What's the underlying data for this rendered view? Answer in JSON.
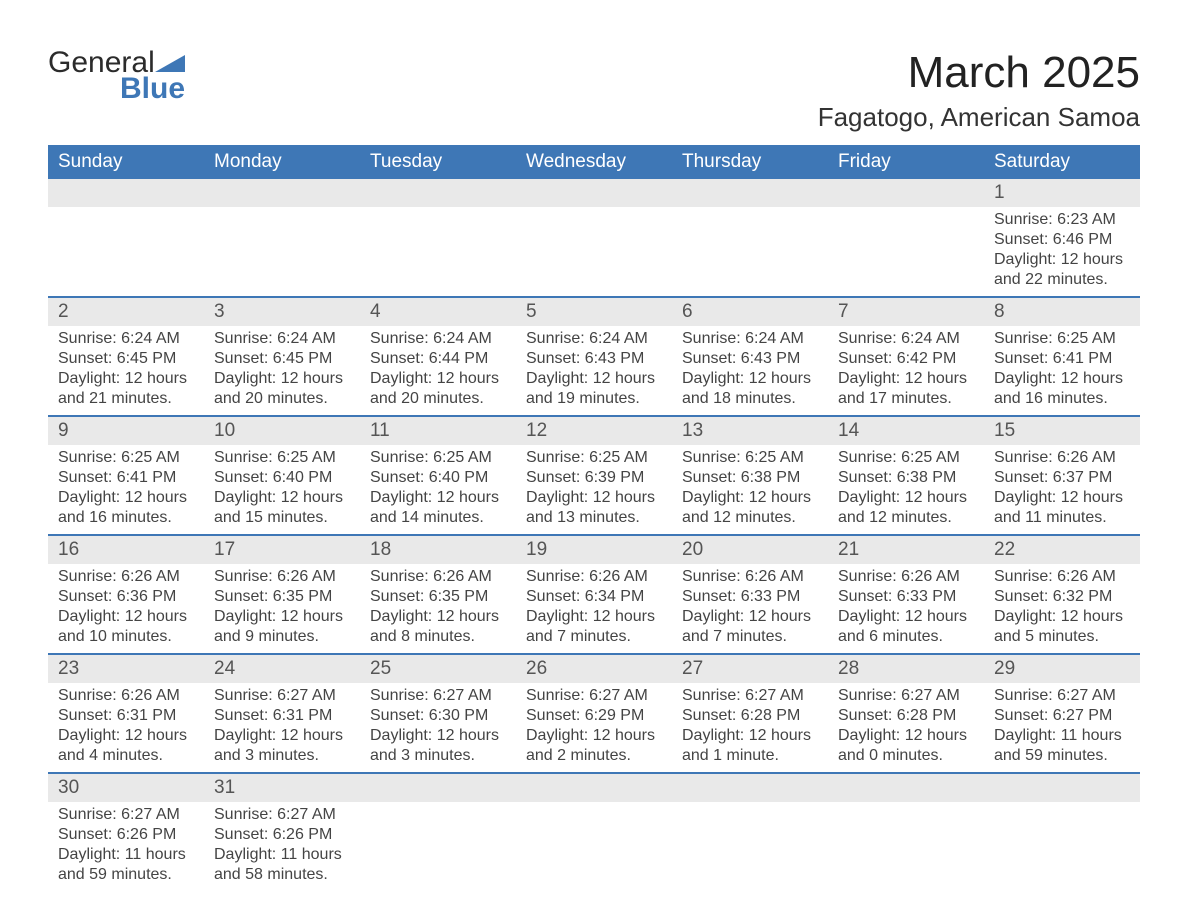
{
  "logo": {
    "general": "General",
    "blue": "Blue"
  },
  "header": {
    "title": "March 2025",
    "location": "Fagatogo, American Samoa"
  },
  "colors": {
    "header_bg": "#3e77b6",
    "header_text": "#ffffff",
    "daynum_bg": "#e9e9e9",
    "row_border": "#3e77b6",
    "body_text": "#444444"
  },
  "weekdays": [
    "Sunday",
    "Monday",
    "Tuesday",
    "Wednesday",
    "Thursday",
    "Friday",
    "Saturday"
  ],
  "labels": {
    "sunrise": "Sunrise:",
    "sunset": "Sunset:",
    "daylight": "Daylight:"
  },
  "weeks": [
    [
      null,
      null,
      null,
      null,
      null,
      null,
      {
        "n": 1,
        "sr": "6:23 AM",
        "ss": "6:46 PM",
        "dl": "12 hours and 22 minutes."
      }
    ],
    [
      {
        "n": 2,
        "sr": "6:24 AM",
        "ss": "6:45 PM",
        "dl": "12 hours and 21 minutes."
      },
      {
        "n": 3,
        "sr": "6:24 AM",
        "ss": "6:45 PM",
        "dl": "12 hours and 20 minutes."
      },
      {
        "n": 4,
        "sr": "6:24 AM",
        "ss": "6:44 PM",
        "dl": "12 hours and 20 minutes."
      },
      {
        "n": 5,
        "sr": "6:24 AM",
        "ss": "6:43 PM",
        "dl": "12 hours and 19 minutes."
      },
      {
        "n": 6,
        "sr": "6:24 AM",
        "ss": "6:43 PM",
        "dl": "12 hours and 18 minutes."
      },
      {
        "n": 7,
        "sr": "6:24 AM",
        "ss": "6:42 PM",
        "dl": "12 hours and 17 minutes."
      },
      {
        "n": 8,
        "sr": "6:25 AM",
        "ss": "6:41 PM",
        "dl": "12 hours and 16 minutes."
      }
    ],
    [
      {
        "n": 9,
        "sr": "6:25 AM",
        "ss": "6:41 PM",
        "dl": "12 hours and 16 minutes."
      },
      {
        "n": 10,
        "sr": "6:25 AM",
        "ss": "6:40 PM",
        "dl": "12 hours and 15 minutes."
      },
      {
        "n": 11,
        "sr": "6:25 AM",
        "ss": "6:40 PM",
        "dl": "12 hours and 14 minutes."
      },
      {
        "n": 12,
        "sr": "6:25 AM",
        "ss": "6:39 PM",
        "dl": "12 hours and 13 minutes."
      },
      {
        "n": 13,
        "sr": "6:25 AM",
        "ss": "6:38 PM",
        "dl": "12 hours and 12 minutes."
      },
      {
        "n": 14,
        "sr": "6:25 AM",
        "ss": "6:38 PM",
        "dl": "12 hours and 12 minutes."
      },
      {
        "n": 15,
        "sr": "6:26 AM",
        "ss": "6:37 PM",
        "dl": "12 hours and 11 minutes."
      }
    ],
    [
      {
        "n": 16,
        "sr": "6:26 AM",
        "ss": "6:36 PM",
        "dl": "12 hours and 10 minutes."
      },
      {
        "n": 17,
        "sr": "6:26 AM",
        "ss": "6:35 PM",
        "dl": "12 hours and 9 minutes."
      },
      {
        "n": 18,
        "sr": "6:26 AM",
        "ss": "6:35 PM",
        "dl": "12 hours and 8 minutes."
      },
      {
        "n": 19,
        "sr": "6:26 AM",
        "ss": "6:34 PM",
        "dl": "12 hours and 7 minutes."
      },
      {
        "n": 20,
        "sr": "6:26 AM",
        "ss": "6:33 PM",
        "dl": "12 hours and 7 minutes."
      },
      {
        "n": 21,
        "sr": "6:26 AM",
        "ss": "6:33 PM",
        "dl": "12 hours and 6 minutes."
      },
      {
        "n": 22,
        "sr": "6:26 AM",
        "ss": "6:32 PM",
        "dl": "12 hours and 5 minutes."
      }
    ],
    [
      {
        "n": 23,
        "sr": "6:26 AM",
        "ss": "6:31 PM",
        "dl": "12 hours and 4 minutes."
      },
      {
        "n": 24,
        "sr": "6:27 AM",
        "ss": "6:31 PM",
        "dl": "12 hours and 3 minutes."
      },
      {
        "n": 25,
        "sr": "6:27 AM",
        "ss": "6:30 PM",
        "dl": "12 hours and 3 minutes."
      },
      {
        "n": 26,
        "sr": "6:27 AM",
        "ss": "6:29 PM",
        "dl": "12 hours and 2 minutes."
      },
      {
        "n": 27,
        "sr": "6:27 AM",
        "ss": "6:28 PM",
        "dl": "12 hours and 1 minute."
      },
      {
        "n": 28,
        "sr": "6:27 AM",
        "ss": "6:28 PM",
        "dl": "12 hours and 0 minutes."
      },
      {
        "n": 29,
        "sr": "6:27 AM",
        "ss": "6:27 PM",
        "dl": "11 hours and 59 minutes."
      }
    ],
    [
      {
        "n": 30,
        "sr": "6:27 AM",
        "ss": "6:26 PM",
        "dl": "11 hours and 59 minutes."
      },
      {
        "n": 31,
        "sr": "6:27 AM",
        "ss": "6:26 PM",
        "dl": "11 hours and 58 minutes."
      },
      null,
      null,
      null,
      null,
      null
    ]
  ]
}
